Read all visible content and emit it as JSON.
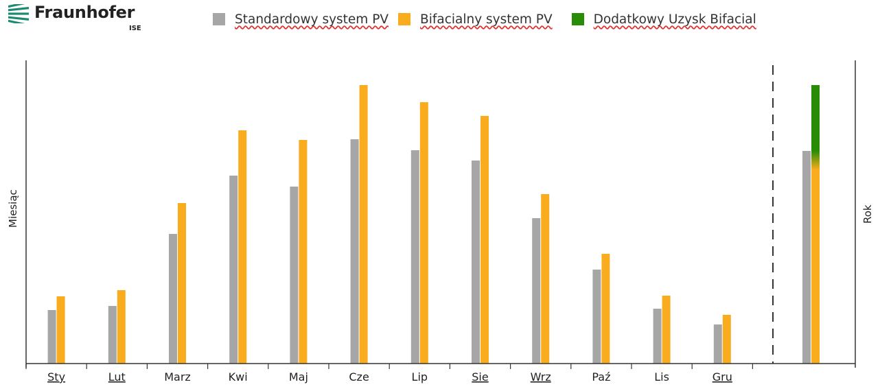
{
  "logo": {
    "name": "Fraunhofer",
    "sub": "ISE",
    "color": "#1a8a72"
  },
  "colors": {
    "standard": "#a6a6a6",
    "bifacial": "#f9ac1e",
    "gain": "#288c07",
    "axis": "#333333"
  },
  "chart_data": {
    "type": "bar",
    "categories": [
      "Sty",
      "Lut",
      "Marz",
      "Kwi",
      "Maj",
      "Cze",
      "Lip",
      "Sie",
      "Wrz",
      "Paź",
      "Lis",
      "Gru"
    ],
    "misspelled_categories": [
      "Sty",
      "Lut",
      "Sie",
      "Wrz",
      "Gru"
    ],
    "series": [
      {
        "name": "Standardowy system PV",
        "values": [
          78,
          84,
          189,
          274,
          258,
          327,
          311,
          296,
          212,
          137,
          80,
          57
        ]
      },
      {
        "name": "Bifacialny system PV",
        "values": [
          98,
          107,
          234,
          340,
          326,
          406,
          381,
          361,
          247,
          160,
          99,
          71
        ]
      }
    ],
    "gain_series_name": "Dodatkowy Uzysk Bifacial",
    "annual": {
      "standard": 310,
      "bifacial": 283,
      "gain_top": 406
    },
    "ylabel_left": "Miesiąc",
    "ylabel_right": "Rok",
    "ylim": [
      0,
      440
    ],
    "grid": false,
    "legend_position": "top"
  }
}
